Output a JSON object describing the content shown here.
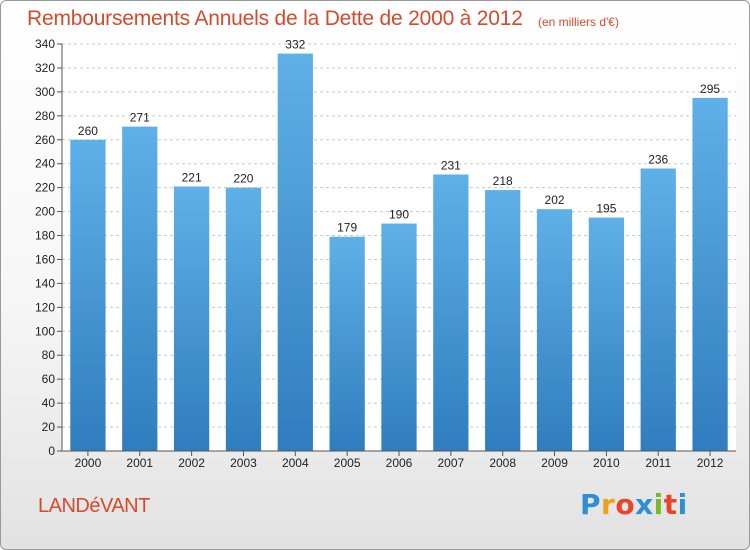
{
  "header": {
    "title": "Remboursements Annuels de la Dette de 2000 à 2012",
    "subtitle": "(en milliers d'€)"
  },
  "footer": {
    "commune": "LANDéVANT",
    "logo_letters": [
      "P",
      "r",
      "o",
      "x",
      "i",
      "t",
      "i"
    ],
    "logo_colors": [
      "#2f8fd4",
      "#f0a018",
      "#e8452a",
      "#2f8fd4",
      "#79b82c",
      "#e8452a",
      "#2f8fd4"
    ]
  },
  "colors": {
    "bar": "#4f9fd8",
    "bar_light": "#5fb0e8",
    "bar_dark": "#2f7dbe",
    "title": "#d64a2c"
  },
  "chart_data": {
    "type": "bar",
    "title": "Remboursements Annuels de la Dette de 2000 à 2012",
    "subtitle": "(en milliers d'€)",
    "categories": [
      "2000",
      "2001",
      "2002",
      "2003",
      "2004",
      "2005",
      "2006",
      "2007",
      "2008",
      "2009",
      "2010",
      "2011",
      "2012"
    ],
    "values": [
      260,
      271,
      221,
      220,
      332,
      179,
      190,
      231,
      218,
      202,
      195,
      236,
      295
    ],
    "ylim": [
      0,
      340
    ],
    "yticks": [
      0,
      20,
      40,
      60,
      80,
      100,
      120,
      140,
      160,
      180,
      200,
      220,
      240,
      260,
      280,
      300,
      320,
      340
    ],
    "grid": true,
    "xlabel": "",
    "ylabel": ""
  }
}
